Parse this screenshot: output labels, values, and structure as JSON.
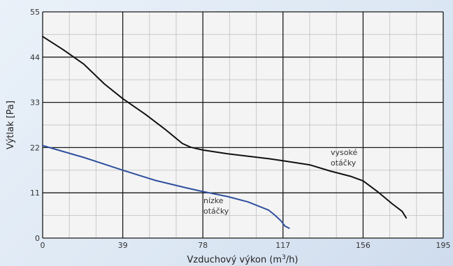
{
  "chart_data": {
    "type": "line",
    "xlabel": "Vzduchový výkon (m",
    "xlabel_sup": "3",
    "xlabel_end": "/h)",
    "ylabel": "Výtlak [Pa]",
    "xlim": [
      0,
      195
    ],
    "ylim": [
      0,
      55
    ],
    "x_ticks": [
      0,
      39,
      78,
      117,
      156,
      195
    ],
    "y_ticks": [
      0,
      11,
      22,
      33,
      44,
      55
    ],
    "grid": true,
    "series": [
      {
        "name": "vysoké otáčky",
        "label_lines": [
          "vysoké",
          "otáčky"
        ],
        "color": "#111111",
        "x": [
          0,
          10,
          20,
          30,
          39,
          50,
          60,
          68,
          72,
          78,
          90,
          100,
          110,
          117,
          130,
          140,
          150,
          156,
          163,
          170,
          175,
          177
        ],
        "y": [
          49,
          45.8,
          42.3,
          37.5,
          33.9,
          30.1,
          26.3,
          23,
          22.1,
          21.4,
          20.5,
          19.9,
          19.3,
          18.8,
          17.8,
          16.3,
          15,
          13.9,
          11.3,
          8.4,
          6.5,
          4.9
        ]
      },
      {
        "name": "nízke otáčky",
        "label_lines": [
          "nízke",
          "otáčky"
        ],
        "color": "#2f4f9e",
        "x": [
          0,
          20,
          39,
          55,
          70,
          78,
          90,
          100,
          110,
          113,
          116,
          118,
          120
        ],
        "y": [
          22.5,
          19.6,
          16.5,
          14,
          12.2,
          11.3,
          10.1,
          8.8,
          6.8,
          5.6,
          4.2,
          2.9,
          2.4
        ]
      }
    ]
  }
}
